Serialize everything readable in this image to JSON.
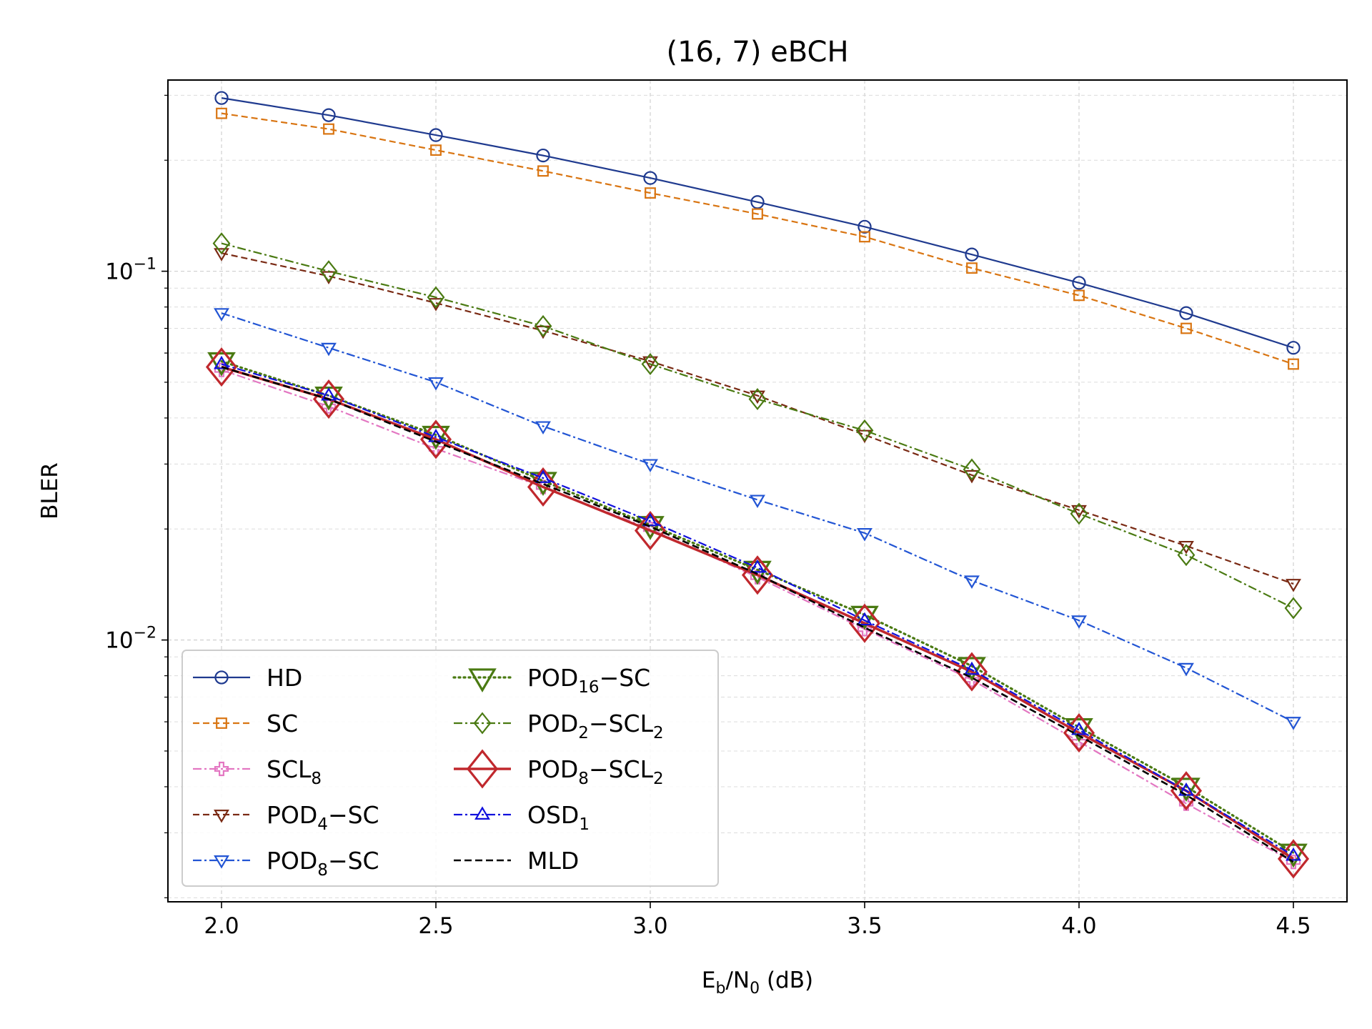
{
  "chart_data": {
    "type": "line",
    "title": "(16, 7) eBCH",
    "xlabel": {
      "main": "E",
      "sub1": "b",
      "mid": "/N",
      "sub2": "0",
      "tail": " (dB)"
    },
    "ylabel": "BLER",
    "yscale": "log",
    "xlim": [
      1.875,
      4.625
    ],
    "ylim": [
      0.00195,
      0.33
    ],
    "x_ticks": [
      "2.0",
      "2.5",
      "3.0",
      "3.5",
      "4.0",
      "4.5"
    ],
    "y_ticks": [
      {
        "value": 0.1,
        "base": "10",
        "exp": "−1"
      },
      {
        "value": 0.01,
        "base": "10",
        "exp": "−2"
      }
    ],
    "grid": true,
    "legend_position": "lower-left",
    "x": [
      2.0,
      2.25,
      2.5,
      2.75,
      3.0,
      3.25,
      3.5,
      3.75,
      4.0,
      4.25,
      4.5
    ],
    "series": [
      {
        "id": "hd",
        "name": "HD",
        "sub": "",
        "name2": "",
        "sub2": "",
        "color": "#1f3a8f",
        "dash": "",
        "marker": "circle",
        "msize": 9,
        "lw": 2.2,
        "values": [
          0.295,
          0.265,
          0.234,
          0.206,
          0.179,
          0.154,
          0.132,
          0.111,
          0.093,
          0.077,
          0.062
        ]
      },
      {
        "id": "sc",
        "name": "SC",
        "sub": "",
        "name2": "",
        "sub2": "",
        "color": "#d97512",
        "dash": "9,5",
        "marker": "square",
        "msize": 8,
        "lw": 2.2,
        "values": [
          0.268,
          0.243,
          0.213,
          0.187,
          0.163,
          0.143,
          0.124,
          0.102,
          0.086,
          0.07,
          0.056
        ]
      },
      {
        "id": "scl8",
        "name": "SCL",
        "sub": "8",
        "name2": "",
        "sub2": "",
        "color": "#e377c2",
        "dash": "12,4,3,4",
        "marker": "plus",
        "msize": 9,
        "lw": 2.2,
        "values": [
          0.054,
          0.043,
          0.033,
          0.026,
          0.02,
          0.0148,
          0.0107,
          0.0078,
          0.0053,
          0.0036,
          0.0025
        ]
      },
      {
        "id": "pod4sc",
        "name": "POD",
        "sub": "4",
        "name2": "−SC",
        "sub2": "",
        "color": "#7a2a14",
        "dash": "9,5",
        "marker": "tri_down",
        "msize": 9,
        "lw": 2.2,
        "values": [
          0.112,
          0.097,
          0.082,
          0.069,
          0.057,
          0.046,
          0.036,
          0.028,
          0.0225,
          0.018,
          0.0142
        ]
      },
      {
        "id": "pod8sc",
        "name": "POD",
        "sub": "8",
        "name2": "−SC",
        "sub2": "",
        "color": "#2255d4",
        "dash": "12,4,3,4",
        "marker": "tri_down",
        "msize": 9,
        "lw": 2.2,
        "values": [
          0.077,
          0.062,
          0.05,
          0.038,
          0.03,
          0.024,
          0.0195,
          0.0145,
          0.0113,
          0.0084,
          0.006
        ]
      },
      {
        "id": "pod16sc",
        "name": "POD",
        "sub": "16",
        "name2": "−SC",
        "sub2": "",
        "color": "#4a7a12",
        "dash": "2,5",
        "marker": "tri_down",
        "msize": 17,
        "lw": 3.2,
        "values": [
          0.057,
          0.046,
          0.036,
          0.027,
          0.0205,
          0.0155,
          0.0117,
          0.0085,
          0.0058,
          0.004,
          0.00265
        ]
      },
      {
        "id": "pod2scl2",
        "name": "POD",
        "sub": "2",
        "name2": "−SCL",
        "sub2": "2",
        "color": "#4a7a12",
        "dash": "12,4,3,4",
        "marker": "diamond",
        "msize": 11,
        "lw": 2.2,
        "values": [
          0.119,
          0.1,
          0.085,
          0.071,
          0.056,
          0.045,
          0.037,
          0.029,
          0.022,
          0.017,
          0.0122
        ]
      },
      {
        "id": "pod8scl2",
        "name": "POD",
        "sub": "8",
        "name2": "−SCL",
        "sub2": "2",
        "color": "#c0282d",
        "dash": "",
        "marker": "diamond",
        "msize": 20,
        "lw": 3.5,
        "values": [
          0.055,
          0.045,
          0.035,
          0.026,
          0.0198,
          0.015,
          0.0111,
          0.0082,
          0.0056,
          0.0039,
          0.00255
        ]
      },
      {
        "id": "osd1",
        "name": "OSD",
        "sub": "1",
        "name2": "",
        "sub2": "",
        "color": "#1010dd",
        "dash": "12,4,3,4",
        "marker": "tri_up",
        "msize": 9,
        "lw": 2.2,
        "values": [
          0.056,
          0.046,
          0.0355,
          0.0275,
          0.021,
          0.0157,
          0.0113,
          0.0083,
          0.0057,
          0.0039,
          0.0026
        ]
      },
      {
        "id": "mld",
        "name": "MLD",
        "sub": "",
        "name2": "",
        "sub2": "",
        "color": "#000000",
        "dash": "10,5",
        "marker": "none",
        "msize": 0,
        "lw": 2.6,
        "values": [
          0.055,
          0.045,
          0.0345,
          0.0265,
          0.0203,
          0.0151,
          0.0108,
          0.0079,
          0.0055,
          0.0038,
          0.0025
        ]
      }
    ]
  }
}
